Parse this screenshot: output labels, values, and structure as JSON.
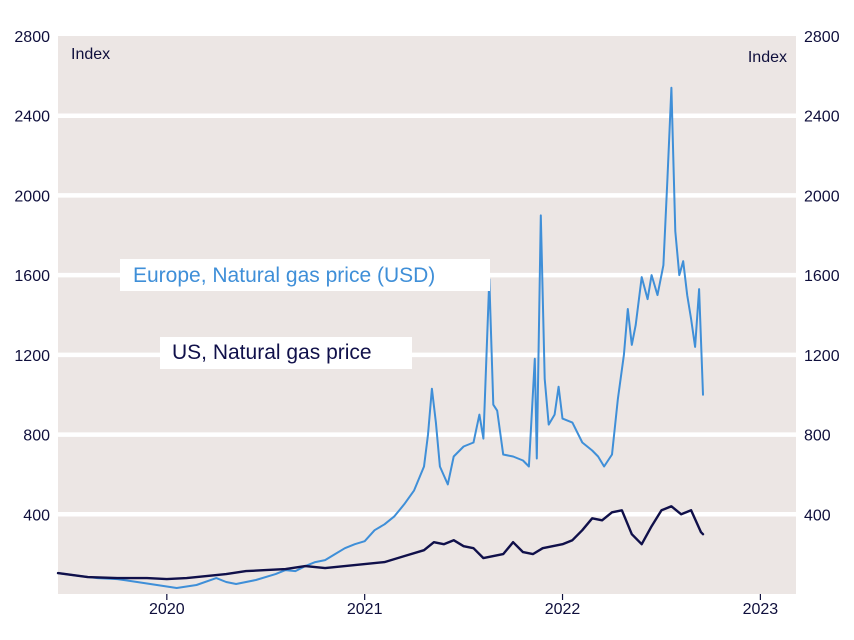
{
  "chart_data": {
    "type": "line",
    "left_axis_label": "Index",
    "right_axis_label": "Index",
    "y_ticks": [
      400,
      800,
      1200,
      1600,
      2000,
      2400,
      2800
    ],
    "y_tick_labels": [
      "400",
      "800",
      "1200",
      "1600",
      "2000",
      "2400",
      "2800"
    ],
    "ylim": [
      0,
      2800
    ],
    "xlim": [
      2019.45,
      2023.18
    ],
    "x_ticks": [
      2020,
      2021,
      2022,
      2023
    ],
    "x_tick_labels": [
      "2020",
      "2021",
      "2022",
      "2023"
    ],
    "grid": "horizontal",
    "colors": {
      "background": "#ece6e4",
      "gridline": "#ffffff",
      "europe": "#3f8fd8",
      "us": "#10104a"
    },
    "series": [
      {
        "name": "Europe, Natural gas price (USD)",
        "color": "#3f8fd8",
        "points": [
          [
            2019.45,
            105
          ],
          [
            2019.55,
            92
          ],
          [
            2019.65,
            80
          ],
          [
            2019.75,
            75
          ],
          [
            2019.85,
            60
          ],
          [
            2019.95,
            45
          ],
          [
            2020.05,
            30
          ],
          [
            2020.15,
            45
          ],
          [
            2020.25,
            80
          ],
          [
            2020.3,
            60
          ],
          [
            2020.35,
            50
          ],
          [
            2020.45,
            70
          ],
          [
            2020.55,
            100
          ],
          [
            2020.6,
            120
          ],
          [
            2020.65,
            115
          ],
          [
            2020.7,
            140
          ],
          [
            2020.75,
            160
          ],
          [
            2020.8,
            170
          ],
          [
            2020.85,
            200
          ],
          [
            2020.9,
            230
          ],
          [
            2020.95,
            250
          ],
          [
            2021.0,
            265
          ],
          [
            2021.05,
            320
          ],
          [
            2021.1,
            350
          ],
          [
            2021.15,
            390
          ],
          [
            2021.2,
            450
          ],
          [
            2021.25,
            520
          ],
          [
            2021.3,
            640
          ],
          [
            2021.32,
            800
          ],
          [
            2021.34,
            1030
          ],
          [
            2021.36,
            860
          ],
          [
            2021.38,
            640
          ],
          [
            2021.42,
            550
          ],
          [
            2021.45,
            690
          ],
          [
            2021.5,
            740
          ],
          [
            2021.55,
            760
          ],
          [
            2021.58,
            900
          ],
          [
            2021.6,
            780
          ],
          [
            2021.63,
            1580
          ],
          [
            2021.65,
            950
          ],
          [
            2021.67,
            920
          ],
          [
            2021.7,
            700
          ],
          [
            2021.75,
            690
          ],
          [
            2021.8,
            670
          ],
          [
            2021.83,
            640
          ],
          [
            2021.86,
            1180
          ],
          [
            2021.87,
            680
          ],
          [
            2021.89,
            1900
          ],
          [
            2021.91,
            1080
          ],
          [
            2021.93,
            850
          ],
          [
            2021.96,
            900
          ],
          [
            2021.98,
            1040
          ],
          [
            2022.0,
            880
          ],
          [
            2022.05,
            860
          ],
          [
            2022.1,
            760
          ],
          [
            2022.15,
            720
          ],
          [
            2022.18,
            690
          ],
          [
            2022.21,
            640
          ],
          [
            2022.25,
            700
          ],
          [
            2022.28,
            980
          ],
          [
            2022.31,
            1200
          ],
          [
            2022.33,
            1430
          ],
          [
            2022.35,
            1250
          ],
          [
            2022.37,
            1350
          ],
          [
            2022.4,
            1590
          ],
          [
            2022.43,
            1480
          ],
          [
            2022.45,
            1600
          ],
          [
            2022.48,
            1500
          ],
          [
            2022.51,
            1650
          ],
          [
            2022.53,
            2080
          ],
          [
            2022.55,
            2540
          ],
          [
            2022.57,
            1820
          ],
          [
            2022.59,
            1600
          ],
          [
            2022.61,
            1670
          ],
          [
            2022.63,
            1500
          ],
          [
            2022.65,
            1380
          ],
          [
            2022.67,
            1240
          ],
          [
            2022.69,
            1530
          ],
          [
            2022.71,
            1000
          ]
        ]
      },
      {
        "name": "US, Natural gas price",
        "color": "#10104a",
        "points": [
          [
            2019.45,
            105
          ],
          [
            2019.6,
            85
          ],
          [
            2019.75,
            80
          ],
          [
            2019.9,
            80
          ],
          [
            2020.0,
            75
          ],
          [
            2020.1,
            80
          ],
          [
            2020.2,
            90
          ],
          [
            2020.3,
            100
          ],
          [
            2020.4,
            115
          ],
          [
            2020.5,
            120
          ],
          [
            2020.6,
            125
          ],
          [
            2020.7,
            140
          ],
          [
            2020.8,
            130
          ],
          [
            2020.9,
            140
          ],
          [
            2021.0,
            150
          ],
          [
            2021.1,
            160
          ],
          [
            2021.2,
            190
          ],
          [
            2021.3,
            220
          ],
          [
            2021.35,
            260
          ],
          [
            2021.4,
            250
          ],
          [
            2021.45,
            270
          ],
          [
            2021.5,
            240
          ],
          [
            2021.55,
            230
          ],
          [
            2021.6,
            180
          ],
          [
            2021.7,
            200
          ],
          [
            2021.75,
            260
          ],
          [
            2021.8,
            210
          ],
          [
            2021.85,
            200
          ],
          [
            2021.9,
            230
          ],
          [
            2022.0,
            250
          ],
          [
            2022.05,
            270
          ],
          [
            2022.1,
            320
          ],
          [
            2022.15,
            380
          ],
          [
            2022.2,
            370
          ],
          [
            2022.25,
            410
          ],
          [
            2022.3,
            420
          ],
          [
            2022.35,
            300
          ],
          [
            2022.4,
            250
          ],
          [
            2022.45,
            340
          ],
          [
            2022.5,
            420
          ],
          [
            2022.55,
            440
          ],
          [
            2022.6,
            400
          ],
          [
            2022.65,
            420
          ],
          [
            2022.7,
            310
          ],
          [
            2022.71,
            300
          ]
        ]
      }
    ]
  }
}
